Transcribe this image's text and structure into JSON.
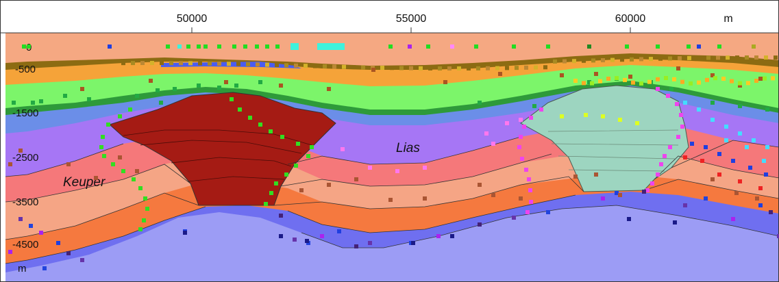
{
  "x_axis": {
    "ticks": [
      "50000",
      "55000",
      "60000"
    ],
    "unit": "m"
  },
  "y_axis": {
    "ticks": [
      "0",
      "-500",
      "-1500",
      "-2500",
      "-3500",
      "-4500"
    ],
    "unit": "m"
  },
  "formations": {
    "lias": "Lias",
    "keuper": "Keuper"
  },
  "colors": {
    "sky": "#ffffff",
    "top_layer": "#f5a882",
    "dark_olive": "#8c6b12",
    "orange_band": "#f5a339",
    "green_band": "#7cf56a",
    "dark_green": "#2e9a3a",
    "blue_band": "#6b8ee8",
    "purple_band": "#a676f5",
    "salmon_band": "#f5787a",
    "peach_band": "#f5a585",
    "red_orange": "#f5793f",
    "deep_blue": "#6f6ff0",
    "basement": "#9c9cf5",
    "fault_block_red": "#a51b14",
    "salt_dome": "#9dd5c0"
  }
}
